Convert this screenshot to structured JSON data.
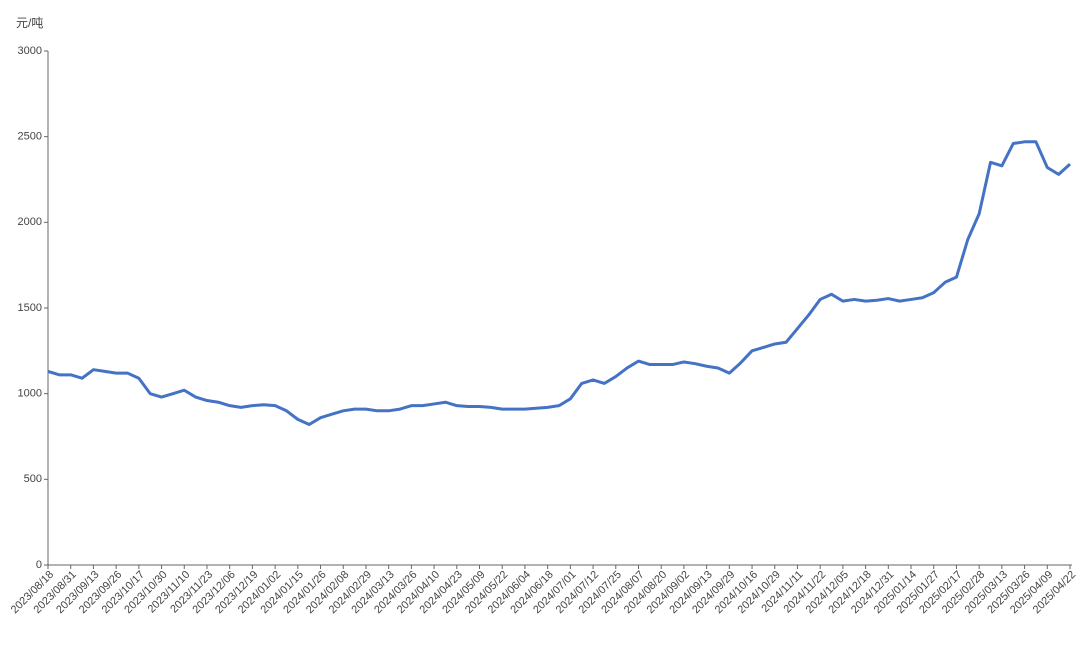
{
  "chart_data": {
    "type": "line",
    "y_label": "元/吨",
    "categories": [
      "2023/08/18",
      null,
      "2023/08/31",
      null,
      "2023/09/13",
      null,
      "2023/09/26",
      null,
      "2023/10/17",
      null,
      "2023/10/30",
      null,
      "2023/11/10",
      null,
      "2023/11/23",
      null,
      "2023/12/06",
      null,
      "2023/12/19",
      null,
      "2024/01/02",
      null,
      "2024/01/15",
      null,
      "2024/01/26",
      null,
      "2024/02/08",
      null,
      "2024/02/29",
      null,
      "2024/03/13",
      null,
      "2024/03/26",
      null,
      "2024/04/10",
      null,
      "2024/04/23",
      null,
      "2024/05/09",
      null,
      "2024/05/22",
      null,
      "2024/06/04",
      null,
      "2024/06/18",
      null,
      "2024/07/01",
      null,
      "2024/07/12",
      null,
      "2024/07/25",
      null,
      "2024/08/07",
      null,
      "2024/08/20",
      null,
      "2024/09/02",
      null,
      "2024/09/13",
      null,
      "2024/09/29",
      null,
      "2024/10/16",
      null,
      "2024/10/29",
      null,
      "2024/11/11",
      null,
      "2024/11/22",
      null,
      "2024/12/05",
      null,
      "2024/12/18",
      null,
      "2024/12/31",
      null,
      "2025/01/14",
      null,
      "2025/01/27",
      null,
      "2025/02/17",
      null,
      "2025/02/28",
      null,
      "2025/03/13",
      null,
      "2025/03/26",
      null,
      "2025/04/09",
      null,
      "2025/04/22"
    ],
    "series": [
      {
        "color": "#4472c4",
        "values": [
          1130,
          1110,
          1110,
          1090,
          1140,
          1130,
          1120,
          1120,
          1090,
          1000,
          980,
          1000,
          1020,
          980,
          960,
          950,
          930,
          920,
          930,
          935,
          930,
          900,
          850,
          820,
          860,
          880,
          900,
          910,
          910,
          900,
          900,
          910,
          930,
          930,
          940,
          950,
          930,
          925,
          925,
          920,
          910,
          910,
          910,
          915,
          920,
          930,
          970,
          1060,
          1080,
          1060,
          1100,
          1150,
          1190,
          1170,
          1170,
          1170,
          1185,
          1175,
          1160,
          1150,
          1120,
          1180,
          1250,
          1270,
          1290,
          1300,
          1380,
          1460,
          1550,
          1580,
          1540,
          1550,
          1540,
          1545,
          1555,
          1540,
          1550,
          1560,
          1590,
          1650,
          1680,
          1900,
          2050,
          2350,
          2330,
          2460,
          2470,
          2470,
          2320,
          2280,
          2340
        ]
      }
    ],
    "ylim": [
      0,
      3000
    ],
    "yticks": [
      0,
      500,
      1000,
      1500,
      2000,
      2500,
      3000
    ]
  }
}
